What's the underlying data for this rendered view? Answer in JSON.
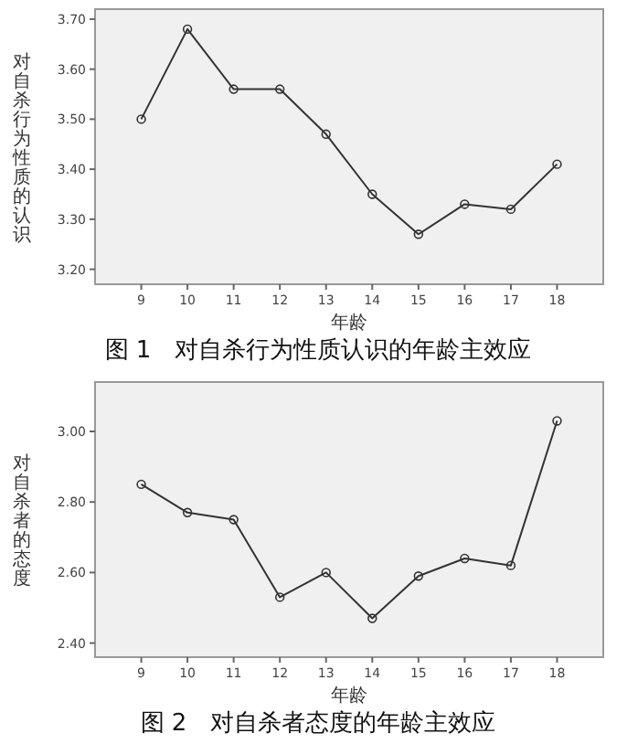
{
  "chart_data": [
    {
      "type": "line",
      "title": "图 1　对自杀行为性质认识的年龄主效应",
      "xlabel": "年龄",
      "ylabel": "对自杀行为性质的认识",
      "categories": [
        "9",
        "10",
        "11",
        "12",
        "13",
        "14",
        "15",
        "16",
        "17",
        "18"
      ],
      "series": [
        {
          "color": "#333333",
          "values": [
            3.5,
            3.68,
            3.56,
            3.56,
            3.47,
            3.35,
            3.27,
            3.33,
            3.32,
            3.41
          ]
        }
      ],
      "ylim": [
        3.17,
        3.72
      ],
      "yticks": [
        {
          "value": 3.2,
          "label": "3.20"
        },
        {
          "value": 3.3,
          "label": "3.30"
        },
        {
          "value": 3.4,
          "label": "3.40"
        },
        {
          "value": 3.5,
          "label": "3.50"
        },
        {
          "value": 3.6,
          "label": "3.60"
        },
        {
          "value": 3.7,
          "label": "3.70"
        }
      ],
      "marker": "circle",
      "line_style": "solid"
    },
    {
      "type": "line",
      "title": "图 2　对自杀者态度的年龄主效应",
      "xlabel": "年龄",
      "ylabel": "对自杀者的态度",
      "categories": [
        "9",
        "10",
        "11",
        "12",
        "13",
        "14",
        "15",
        "16",
        "17",
        "18"
      ],
      "series": [
        {
          "color": "#333333",
          "values": [
            2.85,
            2.77,
            2.75,
            2.53,
            2.6,
            2.47,
            2.59,
            2.64,
            2.62,
            3.03
          ]
        }
      ],
      "ylim": [
        2.36,
        3.14
      ],
      "yticks": [
        {
          "value": 2.4,
          "label": "2.40"
        },
        {
          "value": 2.6,
          "label": "2.60"
        },
        {
          "value": 2.8,
          "label": "2.80"
        },
        {
          "value": 3.0,
          "label": "3.00"
        }
      ],
      "marker": "circle",
      "line_style": "solid"
    }
  ]
}
